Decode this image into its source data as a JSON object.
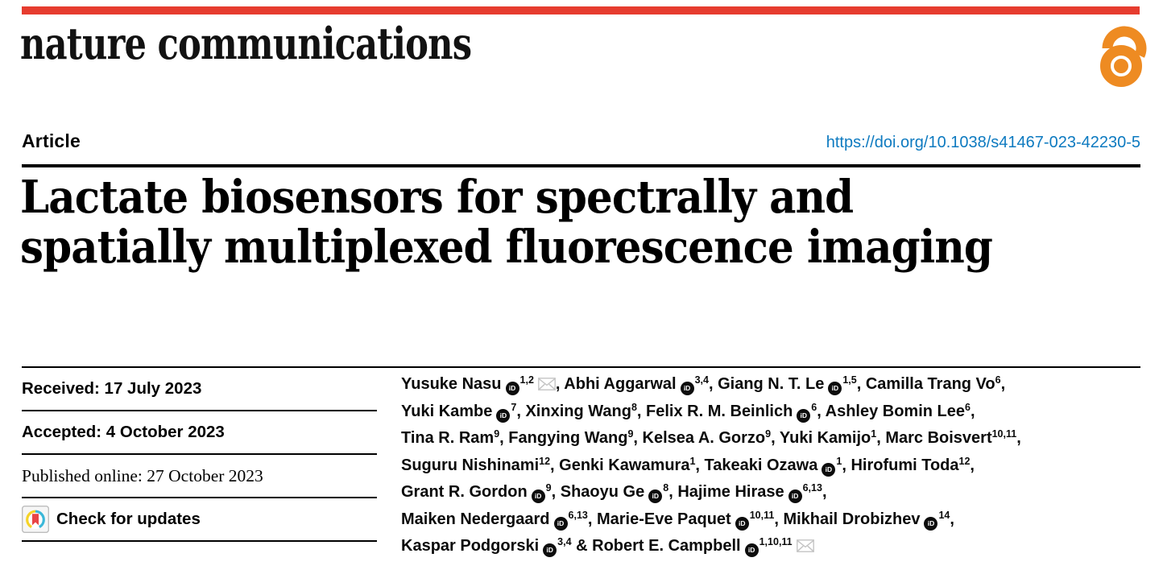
{
  "journal": {
    "name": "nature communications"
  },
  "colors": {
    "bar_red": "#e63c2f",
    "link_blue": "#0d7ac0",
    "oa_orange": "#ee8b22",
    "crossmark_yellow": "#f5d327",
    "crossmark_teal": "#3ab7d8",
    "crossmark_red": "#e84545"
  },
  "article": {
    "kind_label": "Article",
    "doi": "https://doi.org/10.1038/s41467-023-42230-5"
  },
  "title": {
    "line1": "Lactate biosensors for spectrally and",
    "line2": "spatially multiplexed fluorescence imaging"
  },
  "meta_rows": [
    {
      "text": "Received: 17 July 2023",
      "font": "sans"
    },
    {
      "text": "Accepted: 4 October 2023",
      "font": "sans"
    },
    {
      "text": "Published online: 27 October 2023",
      "font": "serif"
    },
    {
      "text": "Check for updates",
      "font": "sans",
      "icon": "crossmark"
    }
  ],
  "author_lines": [
    [
      {
        "name": "Yusuke Nasu",
        "orcid": true,
        "sup": "1,2",
        "mail": true,
        "after": ", "
      },
      {
        "name": "Abhi Aggarwal",
        "orcid": true,
        "sup": "3,4",
        "after": ", "
      },
      {
        "name": "Giang N. T. Le",
        "orcid": true,
        "sup": "1,5",
        "after": ", "
      },
      {
        "name": "Camilla Trang Vo",
        "sup": "6",
        "after": ","
      }
    ],
    [
      {
        "name": "Yuki Kambe",
        "orcid": true,
        "sup": "7",
        "after": ", "
      },
      {
        "name": "Xinxing Wang",
        "sup": "8",
        "after": ", "
      },
      {
        "name": "Felix R. M. Beinlich",
        "orcid": true,
        "sup": "6",
        "after": ", "
      },
      {
        "name": "Ashley Bomin Lee",
        "sup": "6",
        "after": ","
      }
    ],
    [
      {
        "name": "Tina R. Ram",
        "sup": "9",
        "after": ", "
      },
      {
        "name": "Fangying Wang",
        "sup": "9",
        "after": ", "
      },
      {
        "name": "Kelsea A. Gorzo",
        "sup": "9",
        "after": ", "
      },
      {
        "name": "Yuki Kamijo",
        "sup": "1",
        "after": ", "
      },
      {
        "name": "Marc Boisvert",
        "sup": "10,11",
        "after": ","
      }
    ],
    [
      {
        "name": "Suguru Nishinami",
        "sup": "12",
        "after": ", "
      },
      {
        "name": "Genki Kawamura",
        "sup": "1",
        "after": ", "
      },
      {
        "name": "Takeaki Ozawa",
        "orcid": true,
        "sup": "1",
        "after": ", "
      },
      {
        "name": "Hirofumi Toda",
        "sup": "12",
        "after": ","
      }
    ],
    [
      {
        "name": "Grant R. Gordon",
        "orcid": true,
        "sup": "9",
        "after": ", "
      },
      {
        "name": "Shaoyu Ge",
        "orcid": true,
        "sup": "8",
        "after": ", "
      },
      {
        "name": "Hajime Hirase",
        "orcid": true,
        "sup": "6,13",
        "after": ","
      }
    ],
    [
      {
        "name": "Maiken Nedergaard",
        "orcid": true,
        "sup": "6,13",
        "after": ", "
      },
      {
        "name": "Marie-Eve Paquet",
        "orcid": true,
        "sup": "10,11",
        "after": ", "
      },
      {
        "name": "Mikhail Drobizhev",
        "orcid": true,
        "sup": "14",
        "after": ","
      }
    ],
    [
      {
        "name": "Kaspar Podgorski",
        "orcid": true,
        "sup": "3,4",
        "after": " "
      },
      {
        "pre": "& ",
        "name": "Robert E. Campbell",
        "orcid": true,
        "sup": "1,10,11",
        "mail": true,
        "after": ""
      }
    ]
  ],
  "icons": {
    "orcid_label": "iD",
    "open_access": "open-access-lock-icon",
    "envelope": "envelope-icon",
    "crossmark": "crossmark-icon"
  }
}
